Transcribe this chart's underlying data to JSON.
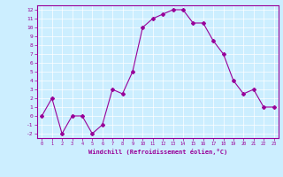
{
  "x": [
    0,
    1,
    2,
    3,
    4,
    5,
    6,
    7,
    8,
    9,
    10,
    11,
    12,
    13,
    14,
    15,
    16,
    17,
    18,
    19,
    20,
    21,
    22,
    23
  ],
  "y": [
    0,
    2,
    -2,
    0,
    0,
    -2,
    -1,
    3,
    2.5,
    5,
    10,
    11,
    11.5,
    12,
    12,
    10.5,
    10.5,
    8.5,
    7,
    4,
    2.5,
    3,
    1,
    1
  ],
  "line_color": "#990099",
  "marker": "D",
  "marker_size": 2,
  "xlim": [
    -0.5,
    23.5
  ],
  "ylim": [
    -2.5,
    12.5
  ],
  "yticks": [
    -2,
    -1,
    0,
    1,
    2,
    3,
    4,
    5,
    6,
    7,
    8,
    9,
    10,
    11,
    12
  ],
  "xticks": [
    0,
    1,
    2,
    3,
    4,
    5,
    6,
    7,
    8,
    9,
    10,
    11,
    12,
    13,
    14,
    15,
    16,
    17,
    18,
    19,
    20,
    21,
    22,
    23
  ],
  "xlabel": "Windchill (Refroidissement éolien,°C)",
  "bg_color": "#cceeff",
  "grid_color": "#ffffff",
  "label_color": "#990099",
  "tick_color": "#990099",
  "xlabel_color": "#990099",
  "border_color": "#990099"
}
